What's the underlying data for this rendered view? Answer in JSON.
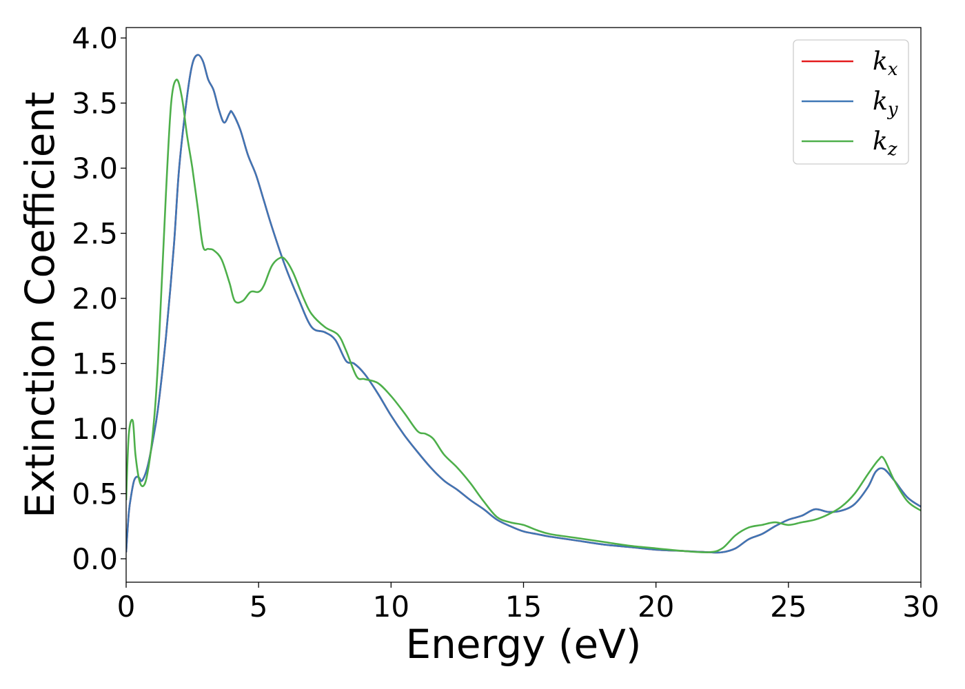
{
  "chart_data": {
    "type": "line",
    "xlabel": "Energy (eV)",
    "ylabel": "Extinction Coefficient",
    "xlim": [
      0,
      30
    ],
    "ylim": [
      -0.18,
      4.08
    ],
    "xticks": [
      0,
      5,
      10,
      15,
      20,
      25,
      30
    ],
    "xtick_labels": [
      "0",
      "5",
      "10",
      "15",
      "20",
      "25",
      "30"
    ],
    "yticks": [
      0.0,
      0.5,
      1.0,
      1.5,
      2.0,
      2.5,
      3.0,
      3.5,
      4.0
    ],
    "ytick_labels": [
      "0.0",
      "0.5",
      "1.0",
      "1.5",
      "2.0",
      "2.5",
      "3.0",
      "3.5",
      "4.0"
    ],
    "grid": false,
    "legend_position": "top-right",
    "series": [
      {
        "name": "k",
        "subscript": "x",
        "color": "#e41a1c",
        "x": [
          0,
          0.1,
          0.2,
          0.3,
          0.4,
          0.5,
          0.6,
          0.8,
          1.0,
          1.2,
          1.5,
          1.8,
          2.0,
          2.3,
          2.5,
          2.7,
          2.9,
          3.1,
          3.3,
          3.5,
          3.7,
          3.9,
          4.0,
          4.3,
          4.6,
          4.9,
          5.2,
          5.5,
          6.0,
          6.5,
          7.0,
          7.5,
          7.9,
          8.3,
          8.6,
          9.0,
          9.5,
          10.0,
          10.5,
          11.0,
          11.5,
          12.0,
          12.5,
          13.0,
          13.5,
          14.0,
          14.5,
          15.0,
          15.5,
          16.0,
          17.0,
          18.0,
          19.0,
          20.0,
          21.0,
          22.0,
          22.5,
          23.0,
          23.5,
          24.0,
          24.5,
          25.0,
          25.5,
          26.0,
          26.5,
          27.0,
          27.5,
          28.0,
          28.3,
          28.6,
          29.0,
          29.5,
          30.0
        ],
        "y": [
          0.05,
          0.35,
          0.5,
          0.6,
          0.63,
          0.62,
          0.6,
          0.7,
          0.9,
          1.15,
          1.7,
          2.4,
          3.0,
          3.55,
          3.8,
          3.87,
          3.82,
          3.68,
          3.6,
          3.45,
          3.35,
          3.42,
          3.43,
          3.3,
          3.1,
          2.95,
          2.75,
          2.55,
          2.25,
          2.0,
          1.78,
          1.74,
          1.68,
          1.52,
          1.5,
          1.42,
          1.27,
          1.1,
          0.95,
          0.82,
          0.7,
          0.6,
          0.53,
          0.45,
          0.38,
          0.3,
          0.25,
          0.21,
          0.19,
          0.17,
          0.14,
          0.11,
          0.09,
          0.07,
          0.06,
          0.05,
          0.05,
          0.08,
          0.15,
          0.19,
          0.25,
          0.3,
          0.33,
          0.38,
          0.36,
          0.37,
          0.42,
          0.55,
          0.67,
          0.69,
          0.6,
          0.47,
          0.4
        ]
      },
      {
        "name": "k",
        "subscript": "y",
        "color": "#3e76b5",
        "x": [
          0,
          0.1,
          0.2,
          0.3,
          0.4,
          0.5,
          0.6,
          0.8,
          1.0,
          1.2,
          1.5,
          1.8,
          2.0,
          2.3,
          2.5,
          2.7,
          2.9,
          3.1,
          3.3,
          3.5,
          3.7,
          3.9,
          4.0,
          4.3,
          4.6,
          4.9,
          5.2,
          5.5,
          6.0,
          6.5,
          7.0,
          7.5,
          7.9,
          8.3,
          8.6,
          9.0,
          9.5,
          10.0,
          10.5,
          11.0,
          11.5,
          12.0,
          12.5,
          13.0,
          13.5,
          14.0,
          14.5,
          15.0,
          15.5,
          16.0,
          17.0,
          18.0,
          19.0,
          20.0,
          21.0,
          22.0,
          22.5,
          23.0,
          23.5,
          24.0,
          24.5,
          25.0,
          25.5,
          26.0,
          26.5,
          27.0,
          27.5,
          28.0,
          28.3,
          28.6,
          29.0,
          29.5,
          30.0
        ],
        "y": [
          0.05,
          0.35,
          0.5,
          0.6,
          0.63,
          0.62,
          0.6,
          0.7,
          0.9,
          1.15,
          1.7,
          2.4,
          3.0,
          3.55,
          3.8,
          3.87,
          3.82,
          3.68,
          3.6,
          3.45,
          3.35,
          3.42,
          3.43,
          3.3,
          3.1,
          2.95,
          2.75,
          2.55,
          2.25,
          2.0,
          1.78,
          1.74,
          1.68,
          1.52,
          1.5,
          1.42,
          1.27,
          1.1,
          0.95,
          0.82,
          0.7,
          0.6,
          0.53,
          0.45,
          0.38,
          0.3,
          0.25,
          0.21,
          0.19,
          0.17,
          0.14,
          0.11,
          0.09,
          0.07,
          0.06,
          0.05,
          0.05,
          0.08,
          0.15,
          0.19,
          0.25,
          0.3,
          0.33,
          0.38,
          0.36,
          0.37,
          0.42,
          0.55,
          0.67,
          0.69,
          0.6,
          0.47,
          0.4
        ]
      },
      {
        "name": "k",
        "subscript": "z",
        "color": "#4daf4a",
        "x": [
          0,
          0.1,
          0.25,
          0.35,
          0.5,
          0.65,
          0.8,
          1.0,
          1.2,
          1.5,
          1.7,
          1.9,
          2.1,
          2.3,
          2.5,
          2.7,
          2.9,
          3.1,
          3.3,
          3.6,
          3.9,
          4.1,
          4.4,
          4.7,
          5.0,
          5.2,
          5.5,
          5.8,
          6.0,
          6.3,
          6.7,
          7.0,
          7.5,
          8.0,
          8.3,
          8.7,
          9.0,
          9.5,
          10.0,
          10.5,
          11.0,
          11.3,
          11.6,
          12.0,
          12.5,
          13.0,
          13.5,
          14.0,
          14.5,
          15.0,
          15.5,
          16.0,
          17.0,
          18.0,
          19.0,
          20.0,
          21.0,
          22.0,
          22.5,
          23.0,
          23.5,
          24.0,
          24.5,
          25.0,
          25.5,
          26.0,
          26.5,
          27.0,
          27.5,
          28.0,
          28.4,
          28.6,
          29.0,
          29.5,
          30.0
        ],
        "y": [
          0.45,
          0.95,
          1.06,
          0.8,
          0.6,
          0.56,
          0.65,
          0.95,
          1.5,
          2.8,
          3.5,
          3.68,
          3.55,
          3.25,
          3.0,
          2.7,
          2.4,
          2.38,
          2.37,
          2.3,
          2.12,
          1.98,
          1.98,
          2.05,
          2.05,
          2.1,
          2.25,
          2.31,
          2.3,
          2.2,
          2.0,
          1.88,
          1.78,
          1.72,
          1.6,
          1.4,
          1.38,
          1.35,
          1.25,
          1.12,
          0.98,
          0.96,
          0.92,
          0.8,
          0.7,
          0.58,
          0.44,
          0.32,
          0.28,
          0.26,
          0.22,
          0.19,
          0.16,
          0.13,
          0.1,
          0.08,
          0.06,
          0.05,
          0.08,
          0.18,
          0.24,
          0.26,
          0.28,
          0.26,
          0.28,
          0.3,
          0.34,
          0.4,
          0.5,
          0.65,
          0.76,
          0.77,
          0.6,
          0.44,
          0.37
        ]
      }
    ]
  }
}
